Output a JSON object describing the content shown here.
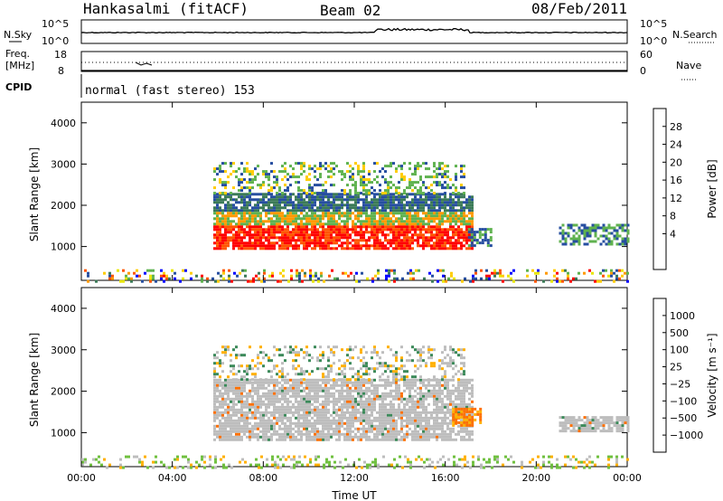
{
  "header": {
    "station": "Hankasalmi (fitACF)",
    "beam": "Beam 02",
    "date": "08/Feb/2011"
  },
  "top_panels": {
    "nsky_label": "N.Sky",
    "nsearch_label": "N.Search",
    "noise_ticks": [
      "10^5",
      "10^0"
    ],
    "freq_label_1": "Freq.",
    "freq_label_2": "[MHz]",
    "freq_ticks": [
      "18",
      "8"
    ],
    "nave_label": "Nave",
    "nave_ticks": [
      "60",
      "0"
    ],
    "cpid_label": "CPID",
    "cpid_text": "normal (fast stereo) 153"
  },
  "chart_data": [
    {
      "type": "heatmap",
      "name": "power",
      "ylabel": "Slant Range [km]",
      "xlabel": "",
      "x_ticks": [
        "00:00",
        "04:00",
        "08:00",
        "12:00",
        "16:00",
        "20:00",
        "00:00"
      ],
      "x_range_hours": [
        0,
        24
      ],
      "y_ticks": [
        1000,
        2000,
        3000,
        4000
      ],
      "ylim": [
        180,
        4500
      ],
      "colorbar": {
        "label": "Power [dB]",
        "ticks": [
          "28",
          "24",
          "20",
          "16",
          "12",
          "8",
          "4"
        ],
        "colors": [
          "#ff0000",
          "#ff5500",
          "#ff9a00",
          "#ffcc00",
          "#e8e600",
          "#5fb24f",
          "#3b7a57",
          "#264ea0",
          "#0000ff"
        ]
      },
      "regions": [
        {
          "t0": 5.8,
          "t1": 17.2,
          "r0": 950,
          "r1": 2300,
          "level": "high"
        },
        {
          "t0": 5.8,
          "t1": 16.8,
          "r0": 2300,
          "r1": 3050,
          "level": "patchy"
        },
        {
          "t0": 17.0,
          "t1": 18.0,
          "r0": 1050,
          "r1": 1450,
          "level": "mid"
        },
        {
          "t0": 21.0,
          "t1": 24.0,
          "r0": 1050,
          "r1": 1550,
          "level": "mid"
        },
        {
          "t0": 0.0,
          "t1": 24.0,
          "r0": 180,
          "r1": 450,
          "level": "noise"
        }
      ]
    },
    {
      "type": "heatmap",
      "name": "velocity",
      "ylabel": "Slant Range [km]",
      "xlabel": "Time UT",
      "x_ticks": [
        "00:00",
        "04:00",
        "08:00",
        "12:00",
        "16:00",
        "20:00",
        "00:00"
      ],
      "x_range_hours": [
        0,
        24
      ],
      "y_ticks": [
        1000,
        2000,
        3000,
        4000
      ],
      "ylim": [
        180,
        4500
      ],
      "colorbar": {
        "label": "Velocity [m s⁻¹]",
        "ticks": [
          "1000",
          "500",
          "100",
          "25",
          "−25",
          "−100",
          "−500",
          "−1000"
        ],
        "colors": [
          "#1f3fbf",
          "#2f5fa0",
          "#3c8a5a",
          "#70c040",
          "#bdbdbd",
          "#ffb000",
          "#ff7000",
          "#ff3000",
          "#ff0000"
        ]
      },
      "regions": [
        {
          "t0": 5.8,
          "t1": 17.2,
          "r0": 800,
          "r1": 2300,
          "level": "gray"
        },
        {
          "t0": 5.8,
          "t1": 16.8,
          "r0": 2300,
          "r1": 3100,
          "level": "patchy"
        },
        {
          "t0": 16.3,
          "t1": 17.6,
          "r0": 1200,
          "r1": 1600,
          "level": "orange"
        },
        {
          "t0": 21.0,
          "t1": 24.0,
          "r0": 1050,
          "r1": 1400,
          "level": "gray"
        },
        {
          "t0": 0.0,
          "t1": 24.0,
          "r0": 180,
          "r1": 450,
          "level": "ground"
        }
      ]
    }
  ]
}
